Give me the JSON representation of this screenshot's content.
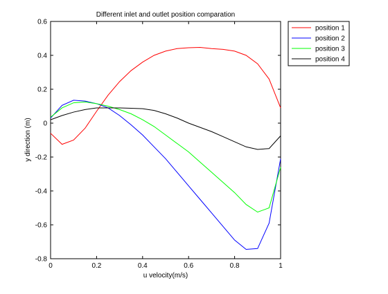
{
  "chart_data": {
    "type": "line",
    "title": "Different inlet and outlet position comparation",
    "xlabel": "u velocity(m/s)",
    "ylabel": "y direction (m)",
    "xlim": [
      0,
      1
    ],
    "ylim": [
      -0.8,
      0.6
    ],
    "xticks": [
      "0",
      "0.2",
      "0.4",
      "0.6",
      "0.8",
      "1"
    ],
    "xtick_values": [
      0,
      0.2,
      0.4,
      0.6,
      0.8,
      1.0
    ],
    "yticks": [
      "-0.8",
      "-0.6",
      "-0.4",
      "-0.2",
      "0",
      "0.2",
      "0.4",
      "0.6"
    ],
    "ytick_values": [
      -0.8,
      -0.6,
      -0.4,
      -0.2,
      0,
      0.2,
      0.4,
      0.6
    ],
    "grid": false,
    "legend_position": "top-right",
    "series": [
      {
        "name": "position 1",
        "color": "#ff0000",
        "x": [
          0,
          0.05,
          0.1,
          0.15,
          0.2,
          0.25,
          0.3,
          0.35,
          0.4,
          0.45,
          0.5,
          0.55,
          0.6,
          0.65,
          0.7,
          0.75,
          0.8,
          0.85,
          0.9,
          0.95,
          1.0
        ],
        "y": [
          -0.06,
          -0.125,
          -0.1,
          -0.03,
          0.07,
          0.165,
          0.245,
          0.31,
          0.36,
          0.4,
          0.425,
          0.44,
          0.445,
          0.447,
          0.44,
          0.435,
          0.425,
          0.4,
          0.35,
          0.26,
          0.09
        ]
      },
      {
        "name": "position 2",
        "color": "#0000ff",
        "x": [
          0,
          0.05,
          0.1,
          0.15,
          0.2,
          0.25,
          0.3,
          0.35,
          0.4,
          0.45,
          0.5,
          0.55,
          0.6,
          0.65,
          0.7,
          0.75,
          0.8,
          0.85,
          0.9,
          0.95,
          1.0
        ],
        "y": [
          0.03,
          0.105,
          0.135,
          0.13,
          0.115,
          0.09,
          0.045,
          -0.01,
          -0.07,
          -0.14,
          -0.21,
          -0.29,
          -0.37,
          -0.45,
          -0.53,
          -0.61,
          -0.69,
          -0.745,
          -0.74,
          -0.59,
          -0.21
        ]
      },
      {
        "name": "position 3",
        "color": "#00ff00",
        "x": [
          0,
          0.05,
          0.1,
          0.15,
          0.2,
          0.25,
          0.3,
          0.35,
          0.4,
          0.45,
          0.5,
          0.55,
          0.6,
          0.65,
          0.7,
          0.75,
          0.8,
          0.85,
          0.9,
          0.95,
          1.0
        ],
        "y": [
          0.035,
          0.09,
          0.12,
          0.125,
          0.115,
          0.1,
          0.08,
          0.055,
          0.02,
          -0.02,
          -0.07,
          -0.12,
          -0.17,
          -0.23,
          -0.29,
          -0.35,
          -0.41,
          -0.48,
          -0.525,
          -0.5,
          -0.26
        ]
      },
      {
        "name": "position 4",
        "color": "#000000",
        "x": [
          0,
          0.05,
          0.1,
          0.15,
          0.2,
          0.25,
          0.3,
          0.35,
          0.4,
          0.45,
          0.5,
          0.55,
          0.6,
          0.65,
          0.7,
          0.75,
          0.8,
          0.85,
          0.9,
          0.95,
          1.0
        ],
        "y": [
          0.02,
          0.045,
          0.065,
          0.08,
          0.09,
          0.09,
          0.09,
          0.088,
          0.085,
          0.075,
          0.055,
          0.03,
          0.0,
          -0.025,
          -0.05,
          -0.08,
          -0.11,
          -0.14,
          -0.155,
          -0.15,
          -0.075
        ]
      }
    ]
  }
}
